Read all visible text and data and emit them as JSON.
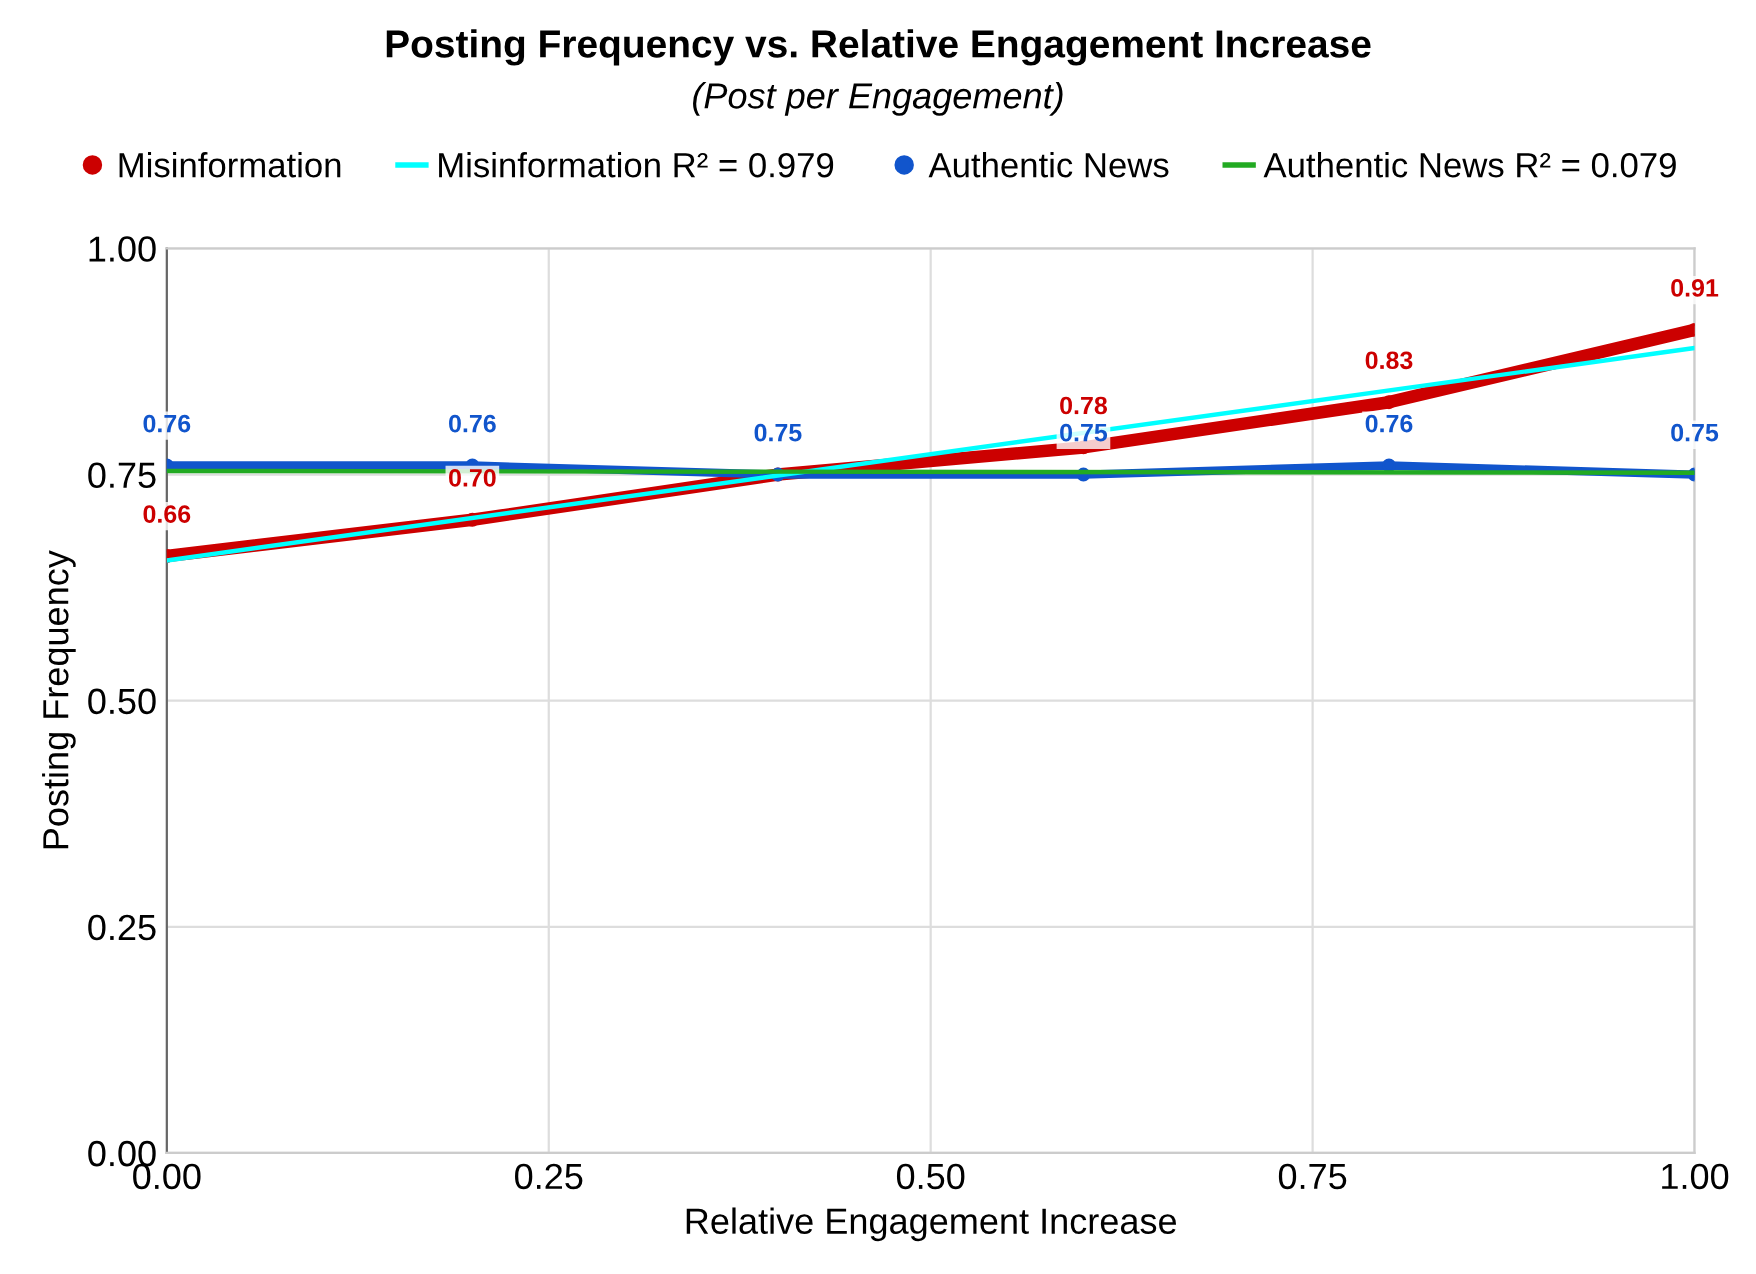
{
  "chart_data": {
    "type": "line",
    "title": "Posting Frequency vs. Relative Engagement Increase",
    "subtitle": "(Post per Engagement)",
    "xlabel": "Relative Engagement Increase",
    "ylabel": "Posting Frequency",
    "xlim": [
      0,
      1
    ],
    "xticks": [
      {
        "value": 0,
        "label": "0.00"
      },
      {
        "value": 0.25,
        "label": "0.25"
      },
      {
        "value": 0.5,
        "label": "0.50"
      },
      {
        "value": 0.75,
        "label": "0.75"
      },
      {
        "value": 1,
        "label": "1.00"
      }
    ],
    "ylim": [
      0,
      1
    ],
    "yticks": [
      {
        "value": 0,
        "label": "0.00"
      },
      {
        "value": 0.25,
        "label": "0.25"
      },
      {
        "value": 0.5,
        "label": "0.50"
      },
      {
        "value": 0.75,
        "label": "0.75"
      },
      {
        "value": 1,
        "label": "1.00"
      }
    ],
    "grid": true,
    "legend": "top",
    "series": [
      {
        "name": "Misinformation",
        "color": "#cc0000",
        "x": [
          0,
          0.2,
          0.4,
          0.6,
          0.8,
          1
        ],
        "values": [
          0.66,
          0.7,
          0.75,
          0.78,
          0.83,
          0.91
        ],
        "value_labels": [
          "0.66",
          "0.70",
          null,
          "0.78",
          "0.83",
          "0.91"
        ],
        "marker": "circle"
      },
      {
        "name": "Misinformation R² = 0.979",
        "type": "line",
        "color": "#00ffff",
        "x": [
          0,
          1
        ],
        "values": [
          0.655,
          0.89
        ],
        "marker": "none"
      },
      {
        "name": "Authentic News",
        "color": "#1155cc",
        "x": [
          0,
          0.2,
          0.4,
          0.6,
          0.8,
          1
        ],
        "values": [
          0.76,
          0.76,
          0.75,
          0.75,
          0.76,
          0.75
        ],
        "value_labels": [
          "0.76",
          "0.76",
          "0.75",
          "0.75",
          "0.76",
          "0.75"
        ],
        "marker": "circle"
      },
      {
        "name": "Authentic News R² = 0.079",
        "type": "line",
        "color": "#22aa22",
        "x": [
          0,
          1
        ],
        "values": [
          0.754,
          0.752
        ],
        "marker": "none"
      }
    ]
  }
}
